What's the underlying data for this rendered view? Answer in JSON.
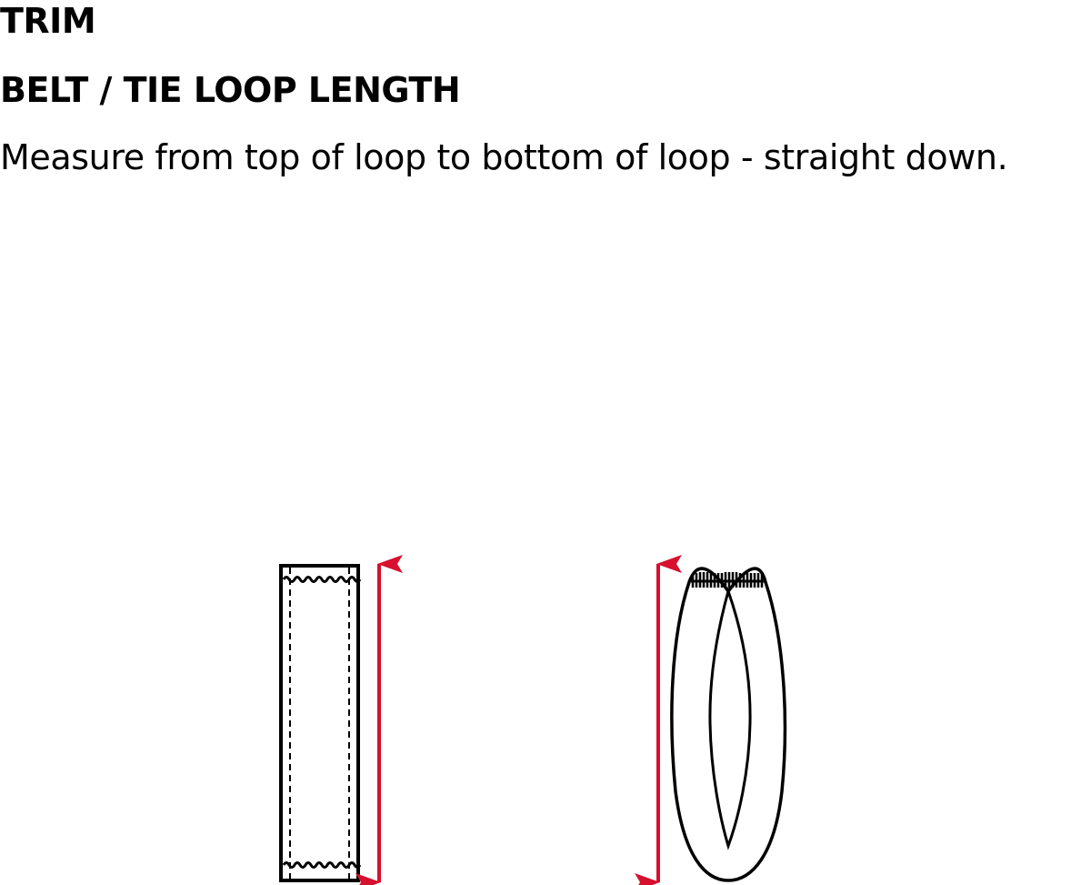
{
  "header": {
    "section_title": "TRIM",
    "measurement_title": "BELT / TIE LOOP LENGTH",
    "instruction": "Measure from top of loop to bottom of loop - straight down."
  },
  "diagram": {
    "figures": [
      {
        "name": "flat-belt-loop",
        "icon": "flat-loop-icon"
      },
      {
        "name": "folded-tie-loop",
        "icon": "folded-loop-icon"
      }
    ],
    "outline_color": "#000000",
    "measure_arrow_color": "#d6102e"
  }
}
